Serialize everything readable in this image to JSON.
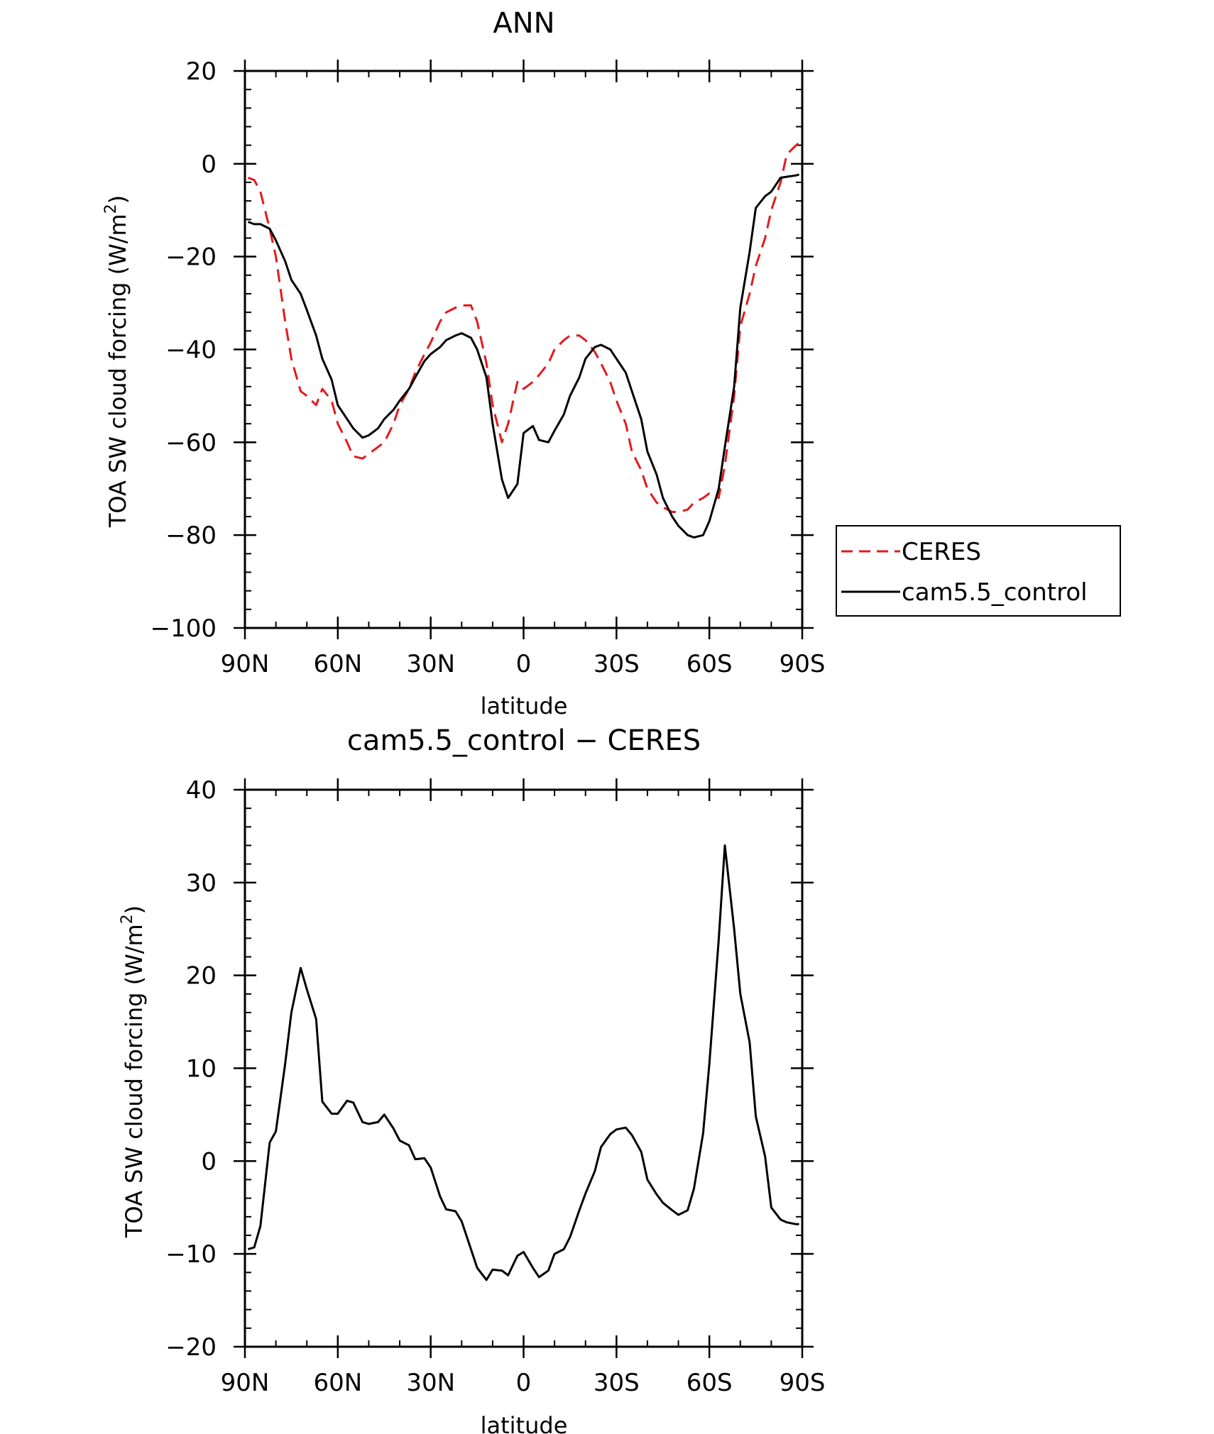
{
  "colors": {
    "ceres": "#e31a1c",
    "model": "#000000",
    "axis": "#000000"
  },
  "chart_data": [
    {
      "type": "line",
      "title": "ANN",
      "xlabel": "latitude",
      "ylabel_main": "TOA SW cloud forcing (W/m",
      "ylabel_sup": "2",
      "ylabel_end": ")",
      "xlim": [
        90,
        -90
      ],
      "ylim": [
        -100,
        20
      ],
      "x_ticks": [
        {
          "value": 90,
          "label": "90N"
        },
        {
          "value": 60,
          "label": "60N"
        },
        {
          "value": 30,
          "label": "30N"
        },
        {
          "value": 0,
          "label": "0"
        },
        {
          "value": -30,
          "label": "30S"
        },
        {
          "value": -60,
          "label": "60S"
        },
        {
          "value": -90,
          "label": "90S"
        }
      ],
      "y_ticks": [
        {
          "value": 20,
          "label": "20"
        },
        {
          "value": 0,
          "label": "0"
        },
        {
          "value": -20,
          "label": "−20"
        },
        {
          "value": -40,
          "label": "−40"
        },
        {
          "value": -60,
          "label": "−60"
        },
        {
          "value": -80,
          "label": "−80"
        },
        {
          "value": -100,
          "label": "−100"
        }
      ],
      "legend": {
        "placement": "right",
        "entries": [
          "CERES",
          "cam5.5_control"
        ]
      },
      "series": [
        {
          "name": "CERES",
          "style": "dashed",
          "color": "#e31a1c",
          "x": [
            89,
            87,
            85,
            82,
            80,
            77,
            75,
            72,
            70,
            67,
            65,
            62,
            60,
            57,
            55,
            52,
            50,
            47,
            45,
            42,
            40,
            37,
            35,
            32,
            30,
            27,
            25,
            22,
            20,
            17,
            15,
            12,
            10,
            7,
            5,
            2,
            0,
            -3,
            -5,
            -8,
            -10,
            -13,
            -15,
            -18,
            -20,
            -23,
            -25,
            -28,
            -30,
            -33,
            -35,
            -38,
            -40,
            -43,
            -45,
            -48,
            -50,
            -53,
            -55,
            -58,
            -60,
            -63,
            -65,
            -68,
            -70,
            -73,
            -75,
            -78,
            -80,
            -83,
            -85,
            -88,
            -89
          ],
          "values": [
            -3,
            -3.5,
            -6,
            -14,
            -20,
            -34,
            -42,
            -49,
            -50,
            -52,
            -48.5,
            -51,
            -56,
            -60,
            -63,
            -63.5,
            -62.5,
            -61,
            -60,
            -56,
            -52,
            -48.5,
            -45,
            -41,
            -38.5,
            -34,
            -32,
            -31,
            -30.5,
            -30.5,
            -34,
            -43,
            -52,
            -60,
            -56,
            -47,
            -48.5,
            -47,
            -45.5,
            -43,
            -40,
            -38,
            -37,
            -37,
            -38,
            -40.5,
            -43,
            -47,
            -51,
            -56,
            -62,
            -66,
            -70,
            -73,
            -74,
            -75,
            -75,
            -74.5,
            -73,
            -72,
            -71,
            -72,
            -65,
            -50,
            -35,
            -28,
            -22,
            -16,
            -10,
            -4,
            2,
            4,
            4.5
          ]
        },
        {
          "name": "cam5.5_control",
          "style": "solid",
          "color": "#000000",
          "x": [
            89,
            87,
            85,
            82,
            80,
            77,
            75,
            72,
            70,
            67,
            65,
            62,
            60,
            57,
            55,
            52,
            50,
            47,
            45,
            42,
            40,
            37,
            35,
            32,
            30,
            27,
            25,
            22,
            20,
            17,
            15,
            12,
            10,
            7,
            5,
            2,
            0,
            -3,
            -5,
            -8,
            -10,
            -13,
            -15,
            -18,
            -20,
            -23,
            -25,
            -28,
            -30,
            -33,
            -35,
            -38,
            -40,
            -43,
            -45,
            -48,
            -50,
            -53,
            -55,
            -58,
            -60,
            -63,
            -65,
            -68,
            -70,
            -73,
            -75,
            -78,
            -80,
            -83,
            -85,
            -88,
            -89
          ],
          "values": [
            -12.5,
            -13,
            -13,
            -14,
            -16.5,
            -21,
            -25,
            -28,
            -31.5,
            -37,
            -42,
            -46.5,
            -52,
            -55,
            -57,
            -59,
            -58.5,
            -57,
            -55,
            -53,
            -51,
            -48.5,
            -46,
            -42.5,
            -41,
            -39.5,
            -38,
            -37,
            -36.5,
            -37.5,
            -40,
            -46,
            -56,
            -68,
            -72,
            -69,
            -58,
            -56.5,
            -59.5,
            -60,
            -57.5,
            -54,
            -50,
            -46,
            -42,
            -39.5,
            -39,
            -40,
            -42,
            -45,
            -49,
            -55,
            -62,
            -67,
            -72,
            -76,
            -78,
            -80,
            -80.5,
            -80,
            -77,
            -70,
            -61,
            -48,
            -31,
            -19,
            -9.5,
            -7,
            -6,
            -3,
            -2.8,
            -2.5,
            -2.3
          ]
        }
      ]
    },
    {
      "type": "line",
      "title": "cam5.5_control − CERES",
      "xlabel": "latitude",
      "ylabel_main": "TOA SW cloud forcing (W/m",
      "ylabel_sup": "2",
      "ylabel_end": ")",
      "xlim": [
        90,
        -90
      ],
      "ylim": [
        -20,
        40
      ],
      "x_ticks": [
        {
          "value": 90,
          "label": "90N"
        },
        {
          "value": 60,
          "label": "60N"
        },
        {
          "value": 30,
          "label": "30N"
        },
        {
          "value": 0,
          "label": "0"
        },
        {
          "value": -30,
          "label": "30S"
        },
        {
          "value": -60,
          "label": "60S"
        },
        {
          "value": -90,
          "label": "90S"
        }
      ],
      "y_ticks": [
        {
          "value": 40,
          "label": "40"
        },
        {
          "value": 30,
          "label": "30"
        },
        {
          "value": 20,
          "label": "20"
        },
        {
          "value": 10,
          "label": "10"
        },
        {
          "value": 0,
          "label": "0"
        },
        {
          "value": -10,
          "label": "−10"
        },
        {
          "value": -20,
          "label": "−20"
        }
      ],
      "series": [
        {
          "style": "solid",
          "color": "#000000",
          "x": [
            89,
            87,
            85,
            82,
            80,
            77,
            75,
            72,
            70,
            67,
            65,
            62,
            60,
            57,
            55,
            52,
            50,
            47,
            45,
            42,
            40,
            37,
            35,
            32,
            30,
            27,
            25,
            22,
            20,
            17,
            15,
            12,
            10,
            7,
            5,
            2,
            0,
            -3,
            -5,
            -8,
            -10,
            -13,
            -15,
            -18,
            -20,
            -23,
            -25,
            -28,
            -30,
            -33,
            -35,
            -38,
            -40,
            -43,
            -45,
            -48,
            -50,
            -53,
            -55,
            -58,
            -60,
            -63,
            -65,
            -68,
            -70,
            -73,
            -75,
            -78,
            -80,
            -83,
            -85,
            -88,
            -89
          ],
          "values": [
            -9.5,
            -9.3,
            -7,
            2,
            3.2,
            10.5,
            16,
            20.8,
            18.5,
            15.3,
            6.4,
            5.1,
            5.1,
            6.5,
            6.3,
            4.2,
            4.0,
            4.2,
            5.0,
            3.5,
            2.2,
            1.7,
            0.2,
            0.3,
            -0.7,
            -3.8,
            -5.2,
            -5.4,
            -6.5,
            -9.5,
            -11.5,
            -12.8,
            -11.7,
            -11.8,
            -12.3,
            -10.2,
            -9.8,
            -11.5,
            -12.5,
            -11.8,
            -10,
            -9.5,
            -8.2,
            -5.3,
            -3.5,
            -1.1,
            1.5,
            2.9,
            3.4,
            3.6,
            2.8,
            1,
            -2,
            -3.6,
            -4.5,
            -5.3,
            -5.8,
            -5.3,
            -3,
            3,
            10.5,
            23.8,
            34,
            25,
            18,
            12.8,
            4.8,
            0.5,
            -5,
            -6.3,
            -6.6,
            -6.8,
            -6.8
          ]
        }
      ]
    }
  ]
}
